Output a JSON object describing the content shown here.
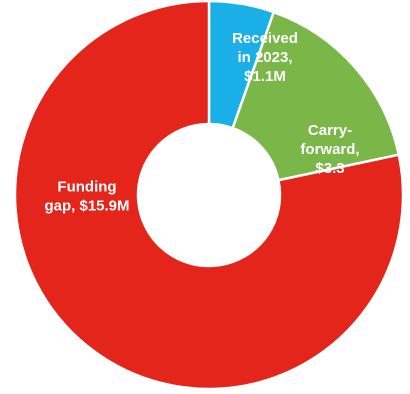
{
  "chart_data": {
    "type": "pie",
    "variant": "donut",
    "unit": "USD million",
    "slices": [
      {
        "name": "Received in 2023",
        "value": 1.1,
        "color": "#1aafe6",
        "label_lines": [
          "Received",
          "in 2023,",
          "$1.1M"
        ]
      },
      {
        "name": "Carry-forward",
        "value": 3.3,
        "color": "#7ab648",
        "label_lines": [
          "Carry-",
          "forward,",
          "$3.3"
        ]
      },
      {
        "name": "Funding gap",
        "value": 15.9,
        "color": "#e3251b",
        "label_lines": [
          "Funding",
          "gap, $15.9M"
        ]
      }
    ],
    "start_angle_deg": 0,
    "direction": "clockwise",
    "legend": "none",
    "title": ""
  }
}
